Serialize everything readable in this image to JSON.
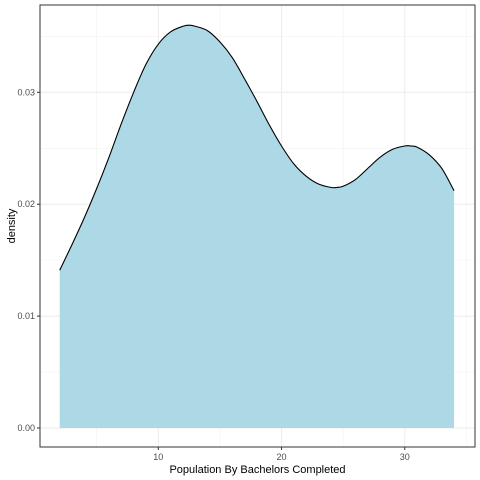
{
  "chart_data": {
    "type": "area",
    "title": "",
    "xlabel": "Population By Bachelors Completed",
    "ylabel": "density",
    "xlim": [
      0.4,
      35.7
    ],
    "ylim": [
      -0.0017,
      0.0378
    ],
    "x_ticks": [
      10,
      20,
      30
    ],
    "x_tick_labels": [
      "10",
      "20",
      "30"
    ],
    "y_ticks": [
      0.0,
      0.01,
      0.02,
      0.03
    ],
    "y_tick_labels": [
      "0.00",
      "0.01",
      "0.02",
      "0.03"
    ],
    "grid": true,
    "series": [
      {
        "name": "density",
        "fill_color": "#add8e6",
        "line_color": "#000000",
        "x": [
          2.0,
          3.0,
          4.0,
          5.0,
          6.0,
          7.0,
          8.0,
          9.0,
          10.0,
          11.0,
          12.0,
          12.5,
          13.0,
          14.0,
          15.0,
          16.0,
          17.0,
          18.0,
          19.0,
          20.0,
          21.0,
          22.0,
          23.0,
          24.0,
          24.5,
          25.0,
          26.0,
          27.0,
          28.0,
          29.0,
          30.0,
          30.5,
          31.0,
          32.0,
          33.0,
          34.0
        ],
        "y": [
          0.0141,
          0.0164,
          0.0188,
          0.0214,
          0.0242,
          0.0272,
          0.03,
          0.0325,
          0.0343,
          0.0354,
          0.0359,
          0.036,
          0.0359,
          0.0355,
          0.0345,
          0.0331,
          0.0312,
          0.0292,
          0.0271,
          0.0252,
          0.0236,
          0.0225,
          0.0218,
          0.0215,
          0.0215,
          0.0216,
          0.0222,
          0.0232,
          0.0242,
          0.0249,
          0.0252,
          0.0252,
          0.0251,
          0.0244,
          0.0232,
          0.0212
        ]
      }
    ]
  }
}
